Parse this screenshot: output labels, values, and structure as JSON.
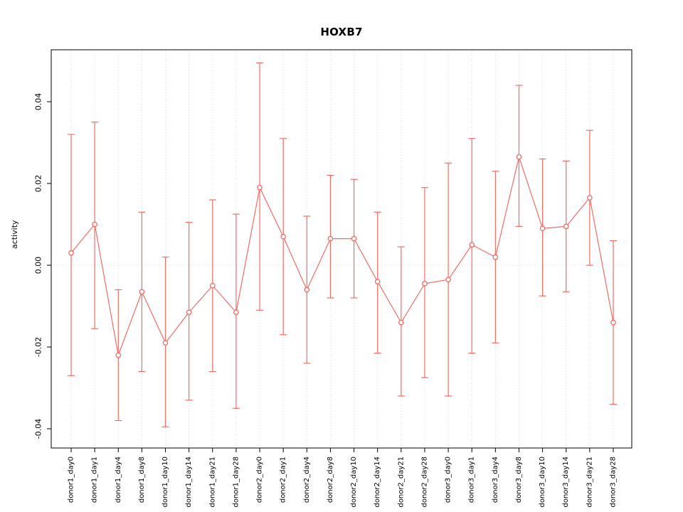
{
  "chart_data": {
    "type": "line",
    "title": "HOXB7",
    "xlabel": "",
    "ylabel": "activity",
    "ylim": [
      -0.0447,
      0.0527
    ],
    "yticks": [
      -0.04,
      -0.02,
      0.0,
      0.02,
      0.04
    ],
    "legend": "none",
    "grid": "dotted vertical gridline at each category; dotted horizontal line at y=0",
    "series_color": "#f26d65",
    "grid_color": "#d8d8d8",
    "axis_color": "#000000",
    "categories": [
      "donor1_day0",
      "donor1_day1",
      "donor1_day4",
      "donor1_day8",
      "donor1_day10",
      "donor1_day14",
      "donor1_day21",
      "donor1_day28",
      "donor2_day0",
      "donor2_day1",
      "donor2_day4",
      "donor2_day8",
      "donor2_day10",
      "donor2_day14",
      "donor2_day21",
      "donor2_day28",
      "donor3_day0",
      "donor3_day1",
      "donor3_day4",
      "donor3_day8",
      "donor3_day10",
      "donor3_day14",
      "donor3_day21",
      "donor3_day28"
    ],
    "values": [
      0.003,
      0.01,
      -0.022,
      -0.0065,
      -0.019,
      -0.0115,
      -0.005,
      -0.0115,
      0.019,
      0.007,
      -0.006,
      0.0065,
      0.0065,
      -0.004,
      -0.014,
      -0.0045,
      -0.0035,
      0.005,
      0.002,
      0.0265,
      0.009,
      0.0095,
      0.0165,
      -0.014
    ],
    "error_high": [
      0.032,
      0.035,
      -0.006,
      0.013,
      0.002,
      0.0105,
      0.016,
      0.0125,
      0.0495,
      0.031,
      0.012,
      0.022,
      0.021,
      0.013,
      0.0045,
      0.019,
      0.025,
      0.031,
      0.023,
      0.044,
      0.026,
      0.0255,
      0.033,
      0.006
    ],
    "error_low": [
      -0.027,
      -0.0155,
      -0.038,
      -0.026,
      -0.0395,
      -0.033,
      -0.026,
      -0.035,
      -0.011,
      -0.017,
      -0.024,
      -0.008,
      -0.008,
      -0.0215,
      -0.032,
      -0.0275,
      -0.032,
      -0.0215,
      -0.019,
      0.0095,
      -0.0075,
      -0.0065,
      0.0,
      -0.034
    ]
  }
}
